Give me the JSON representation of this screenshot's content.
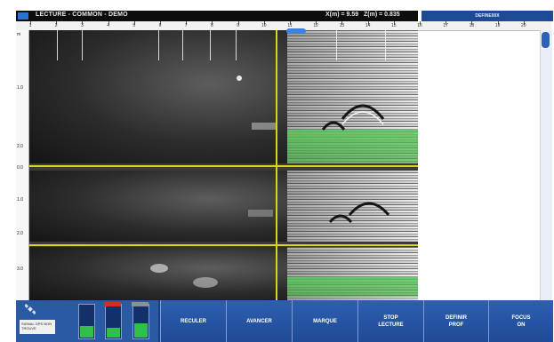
{
  "header": {
    "title": "LECTURE - COMMON - DEMO",
    "x_readout": "X(m) = 9.59",
    "z_readout": "Z(m) = 0.835"
  },
  "sidebar_header": {
    "label": "DEFINE00X"
  },
  "ruler": {
    "ticks": [
      "1",
      "2",
      "3",
      "4",
      "5",
      "6",
      "7",
      "8",
      "9",
      "10",
      "11",
      "12",
      "13",
      "14",
      "15",
      "16",
      "17",
      "18",
      "19",
      "20"
    ]
  },
  "depth_scale": {
    "labels": [
      "m",
      "1.0",
      "2.0",
      "0.0",
      "1.0",
      "2.0",
      "3.0"
    ]
  },
  "status": {
    "gps_label": "SIGNAL GPS NON TROUVE",
    "gauge_1": {
      "level": 0.35,
      "text": ""
    },
    "gauge_2": {
      "level": 0.3,
      "text": ""
    },
    "gauge_3": {
      "level": 0.45,
      "text": ""
    }
  },
  "toolbar": {
    "reculer": "RECULER",
    "avancer": "AVANCER",
    "marque": "MARQUE",
    "stop": "STOP\nLECTURE",
    "definir": "DEFINIR\nPROF",
    "focus": "FOCUS\nON"
  },
  "colors": {
    "crosshair": "#d9d31c",
    "toolbar": "#1b3f86",
    "picked_layer": "#5ac85a"
  }
}
